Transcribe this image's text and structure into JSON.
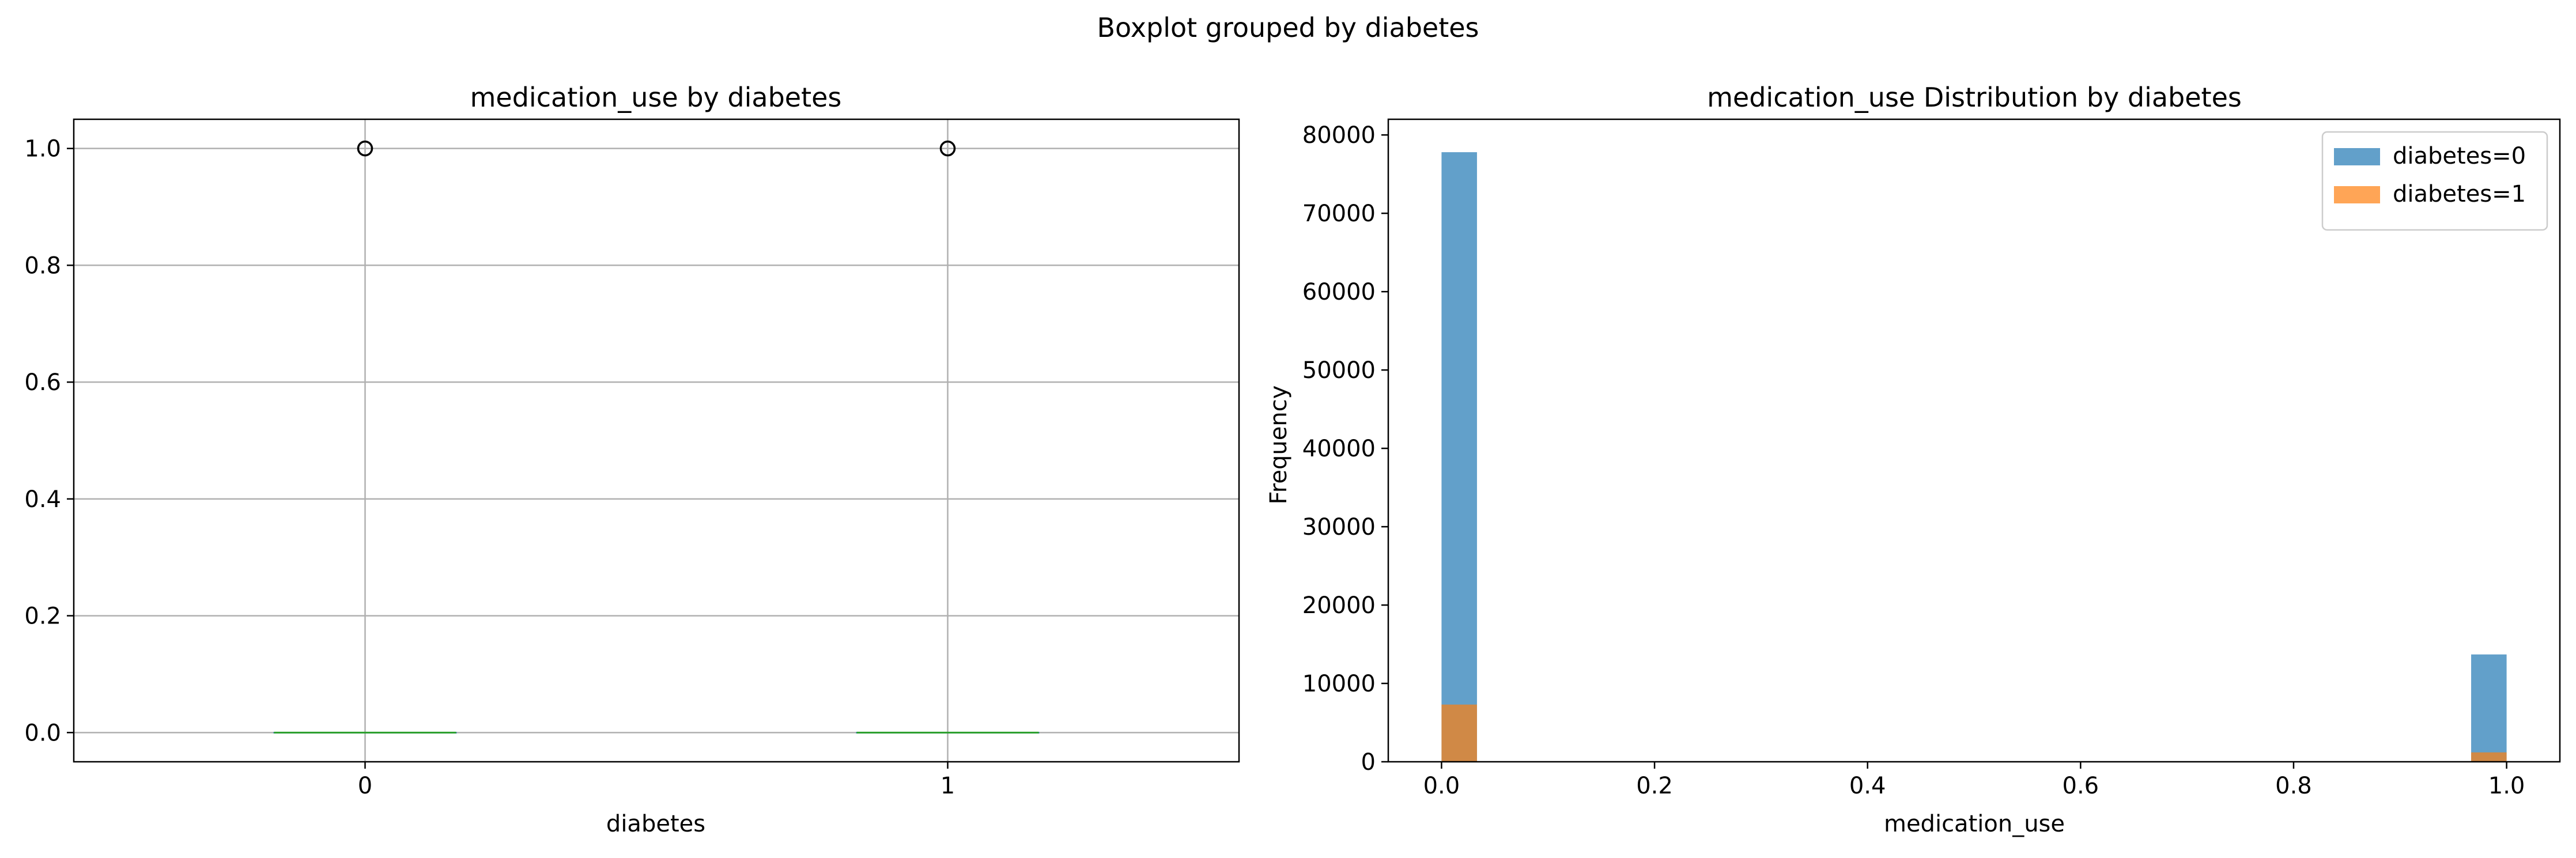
{
  "figure": {
    "suptitle": "Boxplot grouped by diabetes"
  },
  "chart_data": [
    {
      "type": "box",
      "title": "medication_use by diabetes",
      "xlabel": "diabetes",
      "ylabel": "",
      "categories": [
        "0",
        "1"
      ],
      "ylim": [
        -0.05,
        1.05
      ],
      "yticks": [
        0.0,
        0.2,
        0.4,
        0.6,
        0.8,
        1.0
      ],
      "ytick_labels": [
        "0.0",
        "0.2",
        "0.4",
        "0.6",
        "0.8",
        "1.0"
      ],
      "grid": true,
      "boxes": [
        {
          "category": "0",
          "min": 0.0,
          "q1": 0.0,
          "median": 0.0,
          "q3": 0.0,
          "max": 0.0,
          "outliers": [
            1.0
          ]
        },
        {
          "category": "1",
          "min": 0.0,
          "q1": 0.0,
          "median": 0.0,
          "q3": 0.0,
          "max": 0.0,
          "outliers": [
            1.0
          ]
        }
      ],
      "colors": {
        "box": "#1f77b4",
        "median": "#2ca02c",
        "grid": "#b0b0b0",
        "outlier_edge": "#000000"
      }
    },
    {
      "type": "bar",
      "title": "medication_use Distribution by diabetes",
      "xlabel": "medication_use",
      "ylabel": "Frequency",
      "xlim": [
        -0.05,
        1.05
      ],
      "ylim": [
        0,
        82000
      ],
      "xticks": [
        0.0,
        0.2,
        0.4,
        0.6,
        0.8,
        1.0
      ],
      "xtick_labels": [
        "0.0",
        "0.2",
        "0.4",
        "0.6",
        "0.8",
        "1.0"
      ],
      "yticks": [
        0,
        10000,
        20000,
        30000,
        40000,
        50000,
        60000,
        70000,
        80000
      ],
      "ytick_labels": [
        "0",
        "10000",
        "20000",
        "30000",
        "40000",
        "50000",
        "60000",
        "70000",
        "80000"
      ],
      "bins": 30,
      "grid": false,
      "legend_position": "top-right",
      "series": [
        {
          "name": "diabetes=0",
          "color": "#1f77b4",
          "alpha": 0.7,
          "bars": [
            {
              "x_start": 0.0,
              "x_end": 0.0333,
              "value": 77800
            },
            {
              "x_start": 0.9667,
              "x_end": 1.0,
              "value": 13700
            }
          ]
        },
        {
          "name": "diabetes=1",
          "color": "#ff7f0e",
          "alpha": 0.7,
          "bars": [
            {
              "x_start": 0.0,
              "x_end": 0.0333,
              "value": 7300
            },
            {
              "x_start": 0.9667,
              "x_end": 1.0,
              "value": 1200
            }
          ]
        }
      ]
    }
  ]
}
